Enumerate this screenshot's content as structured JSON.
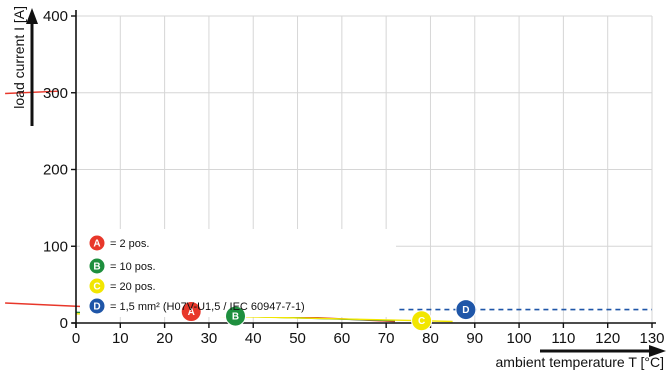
{
  "chart_data": {
    "type": "line",
    "xlabel": "ambient temperature T [°C]",
    "ylabel": "load current I [A]",
    "xlim": [
      0,
      130
    ],
    "ylim": [
      0,
      400
    ],
    "xticks": [
      0,
      10,
      20,
      30,
      40,
      50,
      60,
      70,
      80,
      90,
      100,
      110,
      120,
      130
    ],
    "yticks": [
      0,
      100,
      200,
      300,
      400
    ],
    "grid": true,
    "legend_position": "bottom-left",
    "legend": [
      {
        "marker": "A",
        "text": "= 2 pos.",
        "color": "#e8372a"
      },
      {
        "marker": "B",
        "text": "= 10 pos.",
        "color": "#1e8f3e"
      },
      {
        "marker": "C",
        "text": "= 20 pos.",
        "color": "#f2e600"
      },
      {
        "marker": "D",
        "text": "= 1,5 mm² (H07V-U1,5 / IEC 60947-7-1)",
        "color": "#1f56a8"
      }
    ],
    "series": [
      {
        "marker": "A",
        "color": "#e8372a",
        "style": "solid",
        "x": [
          -16,
          26,
          72
        ],
        "y": [
          26,
          15,
          2
        ]
      },
      {
        "marker": "A",
        "color": "#e8372a",
        "style": "solid",
        "x": [
          -16,
          -4
        ],
        "y": [
          299,
          302
        ]
      },
      {
        "marker": "B",
        "color": "#1e8f3e",
        "style": "solid",
        "x": [
          0,
          36,
          72
        ],
        "y": [
          14,
          9,
          3
        ]
      },
      {
        "marker": "C",
        "color": "#f2e600",
        "style": "solid",
        "x": [
          0,
          40,
          78,
          85
        ],
        "y": [
          12,
          8,
          3,
          2
        ]
      },
      {
        "marker": "D",
        "color": "#1f56a8",
        "style": "dashed",
        "x": [
          73,
          130
        ],
        "y": [
          17.5,
          17.5
        ]
      }
    ],
    "series_markers": [
      {
        "marker": "A",
        "x": 26,
        "y": 15
      },
      {
        "marker": "B",
        "x": 36,
        "y": 9
      },
      {
        "marker": "C",
        "x": 78,
        "y": 3
      },
      {
        "marker": "D",
        "x": 88,
        "y": 17.5
      }
    ]
  }
}
